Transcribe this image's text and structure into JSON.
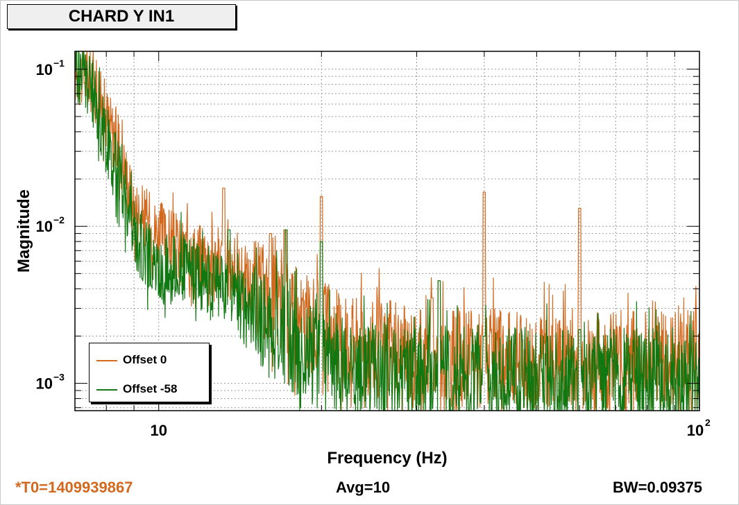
{
  "title": "CHARD Y IN1",
  "footer": {
    "t0": "*T0=1409939867",
    "avg": "Avg=10",
    "bw": "BW=0.09375",
    "t0_color": "#d2691e"
  },
  "chart_data": {
    "type": "line",
    "title": "CHARD Y IN1",
    "xlabel": "Frequency (Hz)",
    "ylabel": "Magnitude",
    "xscale": "log",
    "yscale": "log",
    "xlim": [
      7,
      100
    ],
    "ylim": [
      0.00067,
      0.13
    ],
    "grid": true,
    "legend_position": "bottom-left",
    "x_ticks": [
      {
        "base": "10",
        "exp": ""
      },
      {
        "base": "10",
        "exp": "2"
      }
    ],
    "y_ticks": [
      {
        "base": "10",
        "exp": "−1"
      },
      {
        "base": "10",
        "exp": "−2"
      },
      {
        "base": "10",
        "exp": "−3"
      }
    ],
    "series": [
      {
        "name": "Offset 0",
        "color": "#d2691e",
        "baseline": [
          [
            7,
            0.1
          ],
          [
            7.5,
            0.085
          ],
          [
            8,
            0.05
          ],
          [
            8.5,
            0.03
          ],
          [
            9,
            0.013
          ],
          [
            10,
            0.009
          ],
          [
            11,
            0.007
          ],
          [
            12,
            0.0065
          ],
          [
            13,
            0.006
          ],
          [
            14,
            0.005
          ],
          [
            15,
            0.0042
          ],
          [
            16,
            0.0035
          ],
          [
            17,
            0.003
          ],
          [
            18,
            0.0025
          ],
          [
            20,
            0.0022
          ],
          [
            22,
            0.0019
          ],
          [
            25,
            0.0017
          ],
          [
            30,
            0.0015
          ],
          [
            40,
            0.00145
          ],
          [
            60,
            0.0014
          ],
          [
            100,
            0.0014
          ]
        ],
        "peaks": [
          [
            13.2,
            0.0175
          ],
          [
            16.1,
            0.009
          ],
          [
            17.1,
            0.0095
          ],
          [
            20,
            0.0155
          ],
          [
            32,
            0.0035
          ],
          [
            33,
            0.0045
          ],
          [
            40,
            0.0165
          ],
          [
            60,
            0.013
          ]
        ]
      },
      {
        "name": "Offset -58",
        "color": "#117711",
        "baseline": [
          [
            7,
            0.11
          ],
          [
            7.5,
            0.075
          ],
          [
            8,
            0.035
          ],
          [
            8.5,
            0.02
          ],
          [
            9,
            0.009
          ],
          [
            10,
            0.005
          ],
          [
            11,
            0.0055
          ],
          [
            12,
            0.0048
          ],
          [
            13,
            0.0042
          ],
          [
            14,
            0.0035
          ],
          [
            15,
            0.0028
          ],
          [
            16,
            0.0024
          ],
          [
            17,
            0.002
          ],
          [
            18,
            0.0017
          ],
          [
            20,
            0.0014
          ],
          [
            22,
            0.0013
          ],
          [
            25,
            0.0012
          ],
          [
            30,
            0.00115
          ],
          [
            40,
            0.0011
          ],
          [
            60,
            0.00108
          ],
          [
            100,
            0.00108
          ]
        ],
        "peaks": [
          [
            13.5,
            0.0095
          ],
          [
            17.2,
            0.0095
          ],
          [
            20,
            0.008
          ],
          [
            33,
            0.0045
          ],
          [
            40,
            0.002
          ],
          [
            60,
            0.0022
          ]
        ]
      }
    ]
  }
}
